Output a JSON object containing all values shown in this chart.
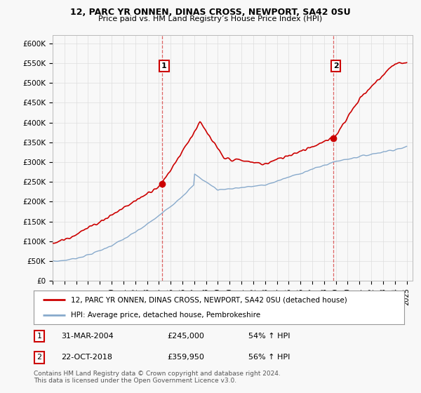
{
  "title_line1": "12, PARC YR ONNEN, DINAS CROSS, NEWPORT, SA42 0SU",
  "title_line2": "Price paid vs. HM Land Registry’s House Price Index (HPI)",
  "ylim": [
    0,
    620000
  ],
  "yticks": [
    0,
    50000,
    100000,
    150000,
    200000,
    250000,
    300000,
    350000,
    400000,
    450000,
    500000,
    550000,
    600000
  ],
  "ytick_labels": [
    "£0",
    "£50K",
    "£100K",
    "£150K",
    "£200K",
    "£250K",
    "£300K",
    "£350K",
    "£400K",
    "£450K",
    "£500K",
    "£550K",
    "£600K"
  ],
  "xlim_left": 1995,
  "xlim_right": 2025.5,
  "sale1_date": 2004.25,
  "sale1_price": 245000,
  "sale2_date": 2018.81,
  "sale2_price": 359950,
  "legend_red": "12, PARC YR ONNEN, DINAS CROSS, NEWPORT, SA42 0SU (detached house)",
  "legend_blue": "HPI: Average price, detached house, Pembrokeshire",
  "row1_num": "1",
  "row1_date": "31-MAR-2004",
  "row1_price": "£245,000",
  "row1_pct": "54% ↑ HPI",
  "row2_num": "2",
  "row2_date": "22-OCT-2018",
  "row2_price": "£359,950",
  "row2_pct": "56% ↑ HPI",
  "footer": "Contains HM Land Registry data © Crown copyright and database right 2024.\nThis data is licensed under the Open Government Licence v3.0.",
  "red_color": "#cc0000",
  "blue_color": "#88aacc",
  "box_edge_color": "#cc0000",
  "dash_color": "#cc0000",
  "grid_color": "#dddddd",
  "bg_color": "#f8f8f8"
}
